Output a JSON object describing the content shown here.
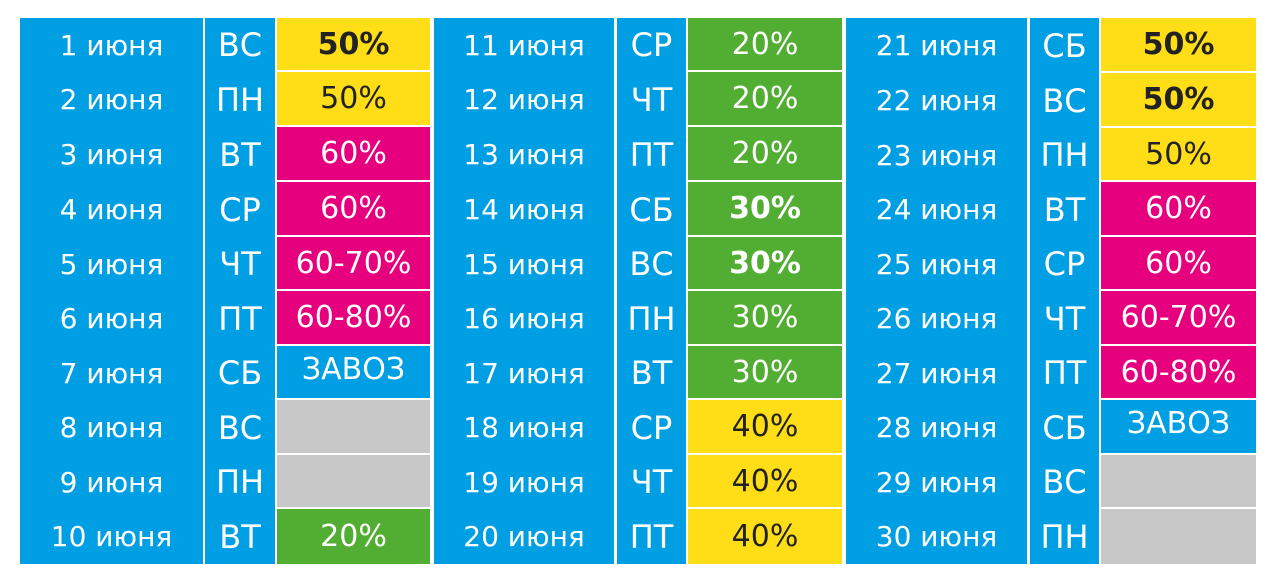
{
  "colors": {
    "blue": "#009fe3",
    "yellow": "#ffde17",
    "magenta": "#e6007e",
    "green": "#52ae32",
    "gray": "#c8c8c8"
  },
  "columns": [
    {
      "rows": [
        {
          "date": "1 июня",
          "day": "ВС",
          "value": "50%",
          "color": "yellow",
          "bold": true
        },
        {
          "date": "2 июня",
          "day": "ПН",
          "value": "50%",
          "color": "yellow",
          "bold": false
        },
        {
          "date": "3 июня",
          "day": "ВТ",
          "value": "60%",
          "color": "magenta",
          "bold": false
        },
        {
          "date": "4 июня",
          "day": "СР",
          "value": "60%",
          "color": "magenta",
          "bold": false
        },
        {
          "date": "5 июня",
          "day": "ЧТ",
          "value": "60-70%",
          "color": "magenta",
          "bold": false
        },
        {
          "date": "6 июня",
          "day": "ПТ",
          "value": "60-80%",
          "color": "magenta",
          "bold": false
        },
        {
          "date": "7 июня",
          "day": "СБ",
          "value": "ЗАВОЗ",
          "color": "blue",
          "bold": false
        },
        {
          "date": "8 июня",
          "day": "ВС",
          "value": "",
          "color": "gray",
          "bold": false
        },
        {
          "date": "9 июня",
          "day": "ПН",
          "value": "",
          "color": "gray",
          "bold": false
        },
        {
          "date": "10 июня",
          "day": "ВТ",
          "value": "20%",
          "color": "green",
          "bold": false
        }
      ]
    },
    {
      "rows": [
        {
          "date": "11 июня",
          "day": "СР",
          "value": "20%",
          "color": "green",
          "bold": false
        },
        {
          "date": "12 июня",
          "day": "ЧТ",
          "value": "20%",
          "color": "green",
          "bold": false
        },
        {
          "date": "13 июня",
          "day": "ПТ",
          "value": "20%",
          "color": "green",
          "bold": false
        },
        {
          "date": "14 июня",
          "day": "СБ",
          "value": "30%",
          "color": "green",
          "bold": true
        },
        {
          "date": "15 июня",
          "day": "ВС",
          "value": "30%",
          "color": "green",
          "bold": true
        },
        {
          "date": "16 июня",
          "day": "ПН",
          "value": "30%",
          "color": "green",
          "bold": false
        },
        {
          "date": "17 июня",
          "day": "ВТ",
          "value": "30%",
          "color": "green",
          "bold": false
        },
        {
          "date": "18 июня",
          "day": "СР",
          "value": "40%",
          "color": "yellow",
          "bold": false
        },
        {
          "date": "19 июня",
          "day": "ЧТ",
          "value": "40%",
          "color": "yellow",
          "bold": false
        },
        {
          "date": "20 июня",
          "day": "ПТ",
          "value": "40%",
          "color": "yellow",
          "bold": false
        }
      ]
    },
    {
      "rows": [
        {
          "date": "21 июня",
          "day": "СБ",
          "value": "50%",
          "color": "yellow",
          "bold": true
        },
        {
          "date": "22 июня",
          "day": "ВС",
          "value": "50%",
          "color": "yellow",
          "bold": true
        },
        {
          "date": "23 июня",
          "day": "ПН",
          "value": "50%",
          "color": "yellow",
          "bold": false
        },
        {
          "date": "24 июня",
          "day": "ВТ",
          "value": "60%",
          "color": "magenta",
          "bold": false
        },
        {
          "date": "25 июня",
          "day": "СР",
          "value": "60%",
          "color": "magenta",
          "bold": false
        },
        {
          "date": "26 июня",
          "day": "ЧТ",
          "value": "60-70%",
          "color": "magenta",
          "bold": false
        },
        {
          "date": "27 июня",
          "day": "ПТ",
          "value": "60-80%",
          "color": "magenta",
          "bold": false
        },
        {
          "date": "28 июня",
          "day": "СБ",
          "value": "ЗАВОЗ",
          "color": "blue",
          "bold": false
        },
        {
          "date": "29 июня",
          "day": "ВС",
          "value": "",
          "color": "gray",
          "bold": false
        },
        {
          "date": "30 июня",
          "day": "ПН",
          "value": "",
          "color": "gray",
          "bold": false
        }
      ]
    }
  ]
}
